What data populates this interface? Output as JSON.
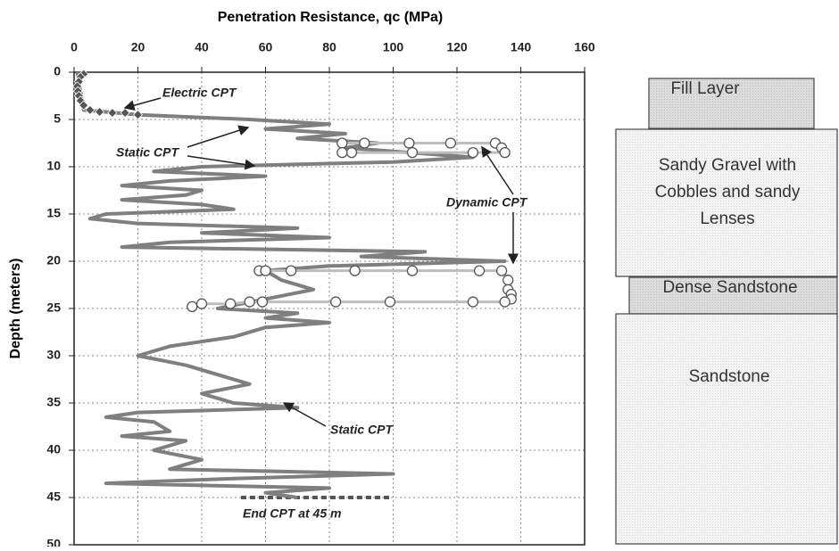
{
  "chart_data": {
    "type": "profile",
    "title": "Penetration Resistance, qc (MPa)",
    "y_label": "Depth (meters)",
    "xlim": [
      0,
      160
    ],
    "xticks": [
      0,
      20,
      40,
      60,
      80,
      100,
      120,
      140,
      160
    ],
    "ylim": [
      0,
      50
    ],
    "yticks": [
      0,
      5,
      10,
      15,
      20,
      25,
      30,
      35,
      40,
      45,
      50
    ],
    "y_inverted": true,
    "grid": true,
    "series": [
      {
        "name": "Static CPT",
        "kind": "line",
        "color": "#7f7f7f",
        "x": [
          1,
          2,
          3,
          20,
          55,
          80,
          60,
          85,
          70,
          95,
          85,
          125,
          100,
          40,
          25,
          60,
          30,
          15,
          40,
          35,
          15,
          40,
          50,
          10,
          5,
          20,
          70,
          40,
          80,
          30,
          15,
          110,
          90,
          135,
          80,
          60,
          65,
          75,
          60,
          45,
          70,
          60,
          80,
          60,
          50,
          30,
          20,
          35,
          45,
          55,
          40,
          50,
          70,
          20,
          10,
          25,
          30,
          15,
          35,
          25,
          40,
          30,
          100,
          50,
          10,
          80,
          60,
          70
        ],
        "y": [
          0,
          2,
          4,
          4.5,
          5,
          5.5,
          6,
          6.5,
          7,
          7.5,
          8,
          9,
          9.5,
          10,
          10.5,
          11,
          11.5,
          12,
          12.5,
          13,
          13.5,
          14,
          14.5,
          15,
          15.5,
          16,
          16.5,
          17,
          17.5,
          18,
          18.5,
          19,
          19.5,
          20,
          20.5,
          21,
          22,
          23,
          24,
          25,
          25.5,
          26,
          26.5,
          27,
          28,
          29,
          30,
          31,
          32,
          33,
          34,
          35,
          35.5,
          36,
          36.5,
          37,
          38,
          38.5,
          39,
          40,
          41,
          42,
          42.5,
          43,
          43.5,
          44,
          44.5,
          45
        ]
      },
      {
        "name": "Electric CPT",
        "kind": "diamond",
        "color": "#555555",
        "x": [
          3,
          2,
          1.5,
          1,
          1.2,
          1.5,
          2,
          3,
          5,
          8,
          12,
          16,
          20
        ],
        "y": [
          0.2,
          0.5,
          1,
          1.5,
          2,
          2.5,
          3,
          3.5,
          4,
          4.2,
          4.3,
          4.3,
          4.5
        ]
      },
      {
        "name": "Dynamic CPT",
        "kind": "circle",
        "color": "#ffffff",
        "x": [
          84,
          91,
          105,
          118,
          132,
          134,
          135,
          125,
          106,
          87,
          84,
          58,
          60,
          68,
          88,
          106,
          127,
          134,
          136,
          136,
          137,
          137,
          135,
          125,
          99,
          82,
          59,
          55,
          49,
          40,
          37
        ],
        "y": [
          7.5,
          7.5,
          7.5,
          7.5,
          7.5,
          8,
          8.5,
          8.5,
          8.5,
          8.5,
          8.5,
          21,
          21,
          21,
          21,
          21,
          21,
          21,
          22,
          23,
          23.5,
          24,
          24.3,
          24.3,
          24.3,
          24.3,
          24.3,
          24.3,
          24.5,
          24.5,
          24.8
        ]
      }
    ],
    "annotations": [
      "Electric CPT",
      "Static CPT",
      "Dynamic CPT",
      "Static CPT",
      "End CPT at 45 m"
    ]
  },
  "soil_profile": {
    "layers": [
      "Fill Layer",
      "Sandy Gravel with Cobbles and sandy Lenses",
      "Dense Sandstone",
      "Sandstone"
    ]
  }
}
